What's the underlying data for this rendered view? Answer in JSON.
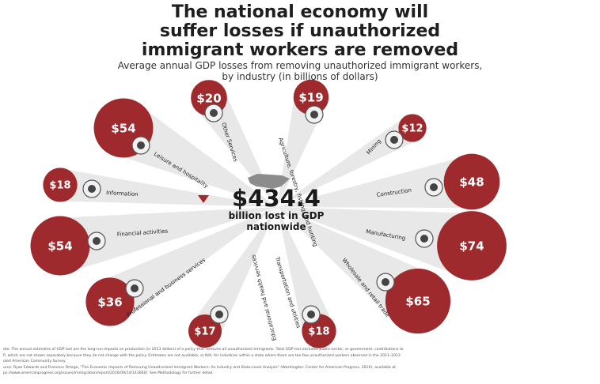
{
  "title_lines": [
    "The national economy will",
    "suffer losses if unauthorized",
    "immigrant workers are removed"
  ],
  "subtitle_lines": [
    "Average annual GDP losses from removing unauthorized immigrant workers,",
    "by industry (in billions of dollars)"
  ],
  "total": {
    "value": "$434.4",
    "label_lines": [
      "billion lost in GDP",
      "nationwide"
    ]
  },
  "colors": {
    "bubble": "#9f2a2d",
    "ray": "#e4e4e4",
    "icon_circle": "#f1f1f1",
    "icon_ring": "#555555"
  },
  "chart_data": {
    "type": "bubble",
    "unit": "billions of dollars",
    "categories": [
      {
        "name": "Leisure and hospitality",
        "value": 54,
        "label": "$54",
        "icon": "food-tray-icon"
      },
      {
        "name": "Other Services",
        "value": 20,
        "label": "$20",
        "icon": "pen-icon"
      },
      {
        "name": "Agriculture, forestry, fishing, and hunting",
        "value": 19,
        "label": "$19",
        "icon": "trees-icon"
      },
      {
        "name": "Mining",
        "value": 12,
        "label": "$12",
        "icon": "mining-icon"
      },
      {
        "name": "Construction",
        "value": 48,
        "label": "$48",
        "icon": "house-icon"
      },
      {
        "name": "Manufacturing",
        "value": 74,
        "label": "$74",
        "icon": "tools-icon"
      },
      {
        "name": "Wholesale and retail trade",
        "value": 65,
        "label": "$65",
        "icon": "storefront-icon"
      },
      {
        "name": "Transportation and utilities",
        "value": 18,
        "label": "$18",
        "icon": "plug-icon"
      },
      {
        "name": "Educational and health services",
        "value": 17,
        "label": "$17",
        "icon": "microscope-icon"
      },
      {
        "name": "Professional and business services",
        "value": 36,
        "label": "$36",
        "icon": "calculator-icon"
      },
      {
        "name": "Financial activities",
        "value": 54,
        "label": "$54",
        "icon": "money-bag-icon"
      },
      {
        "name": "Information",
        "value": 18,
        "label": "$18",
        "icon": "chart-icon"
      }
    ],
    "total": 434.4
  },
  "notes": [
    "ote: The annual estimates of GDP lost are the long-run impacts on production (in 2013 dollars) of a policy that removes all unauthorized immigrants. Total GDP lost excludes public-sector, or government, contributions to",
    "P, which are not shown separately because they do not change with the policy. Estimates are not available, or N/A, for industries within a state where there are too few unauthorized workers observed in the 2011–2013",
    "oled American Community Survey.",
    "urce: Ryan Edwards and Francesc Ortega, \"The Economic Impacts of Removing Unauthorized Immigrant Workers: An Industry and State-Level Analysis\" (Washington: Center for American Progress, 2016), available at",
    "ps://www.americanprogress.org/issues/immigration/report/2016/09/14/143660/. See Methodology for further detail."
  ]
}
